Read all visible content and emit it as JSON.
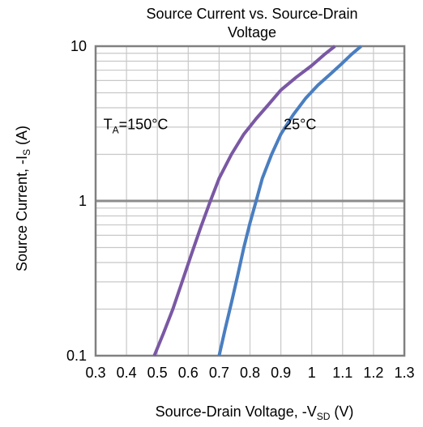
{
  "chart_data": {
    "type": "line",
    "title_lines": [
      "Source Current vs. Source-Drain",
      "Voltage"
    ],
    "xlabel": {
      "main": "Source-Drain Voltage, -V",
      "sub": "SD",
      "unit": " (V)"
    },
    "ylabel": {
      "main": "Source Current, -I",
      "sub": "S",
      "unit": " (A)"
    },
    "xlim": [
      0.3,
      1.3
    ],
    "ylim": [
      0.1,
      10
    ],
    "y_scale": "log",
    "grid": true,
    "x_ticks": [
      "0.3",
      "0.4",
      "0.5",
      "0.6",
      "0.7",
      "0.8",
      "0.9",
      "1",
      "1.1",
      "1.2",
      "1.3"
    ],
    "y_ticks": [
      "0.1",
      "1",
      "10"
    ],
    "series": [
      {
        "name": "TA=150°C",
        "label": {
          "main": "T",
          "sub": "A",
          "rest": "=150°C"
        },
        "color": "#7a58a4",
        "x": [
          0.49,
          0.52,
          0.55,
          0.58,
          0.61,
          0.64,
          0.67,
          0.7,
          0.74,
          0.78,
          0.82,
          0.86,
          0.9,
          0.95,
          1.0,
          1.04,
          1.075
        ],
        "y": [
          0.1,
          0.14,
          0.2,
          0.3,
          0.45,
          0.67,
          0.98,
          1.4,
          2.0,
          2.7,
          3.4,
          4.2,
          5.2,
          6.3,
          7.5,
          8.8,
          10
        ]
      },
      {
        "name": "25°C",
        "label": {
          "main": "25°C",
          "sub": "",
          "rest": ""
        },
        "color": "#4a7ec0",
        "x": [
          0.7,
          0.72,
          0.74,
          0.76,
          0.78,
          0.8,
          0.82,
          0.84,
          0.87,
          0.9,
          0.94,
          0.98,
          1.02,
          1.06,
          1.1,
          1.13,
          1.16
        ],
        "y": [
          0.1,
          0.15,
          0.22,
          0.33,
          0.5,
          0.72,
          1.0,
          1.4,
          2.0,
          2.7,
          3.6,
          4.6,
          5.6,
          6.6,
          7.8,
          8.9,
          10
        ]
      }
    ],
    "colors": {
      "grid_major": "#8c8c8c",
      "grid_minor": "#c8c8c8",
      "frame": "#808080"
    }
  }
}
